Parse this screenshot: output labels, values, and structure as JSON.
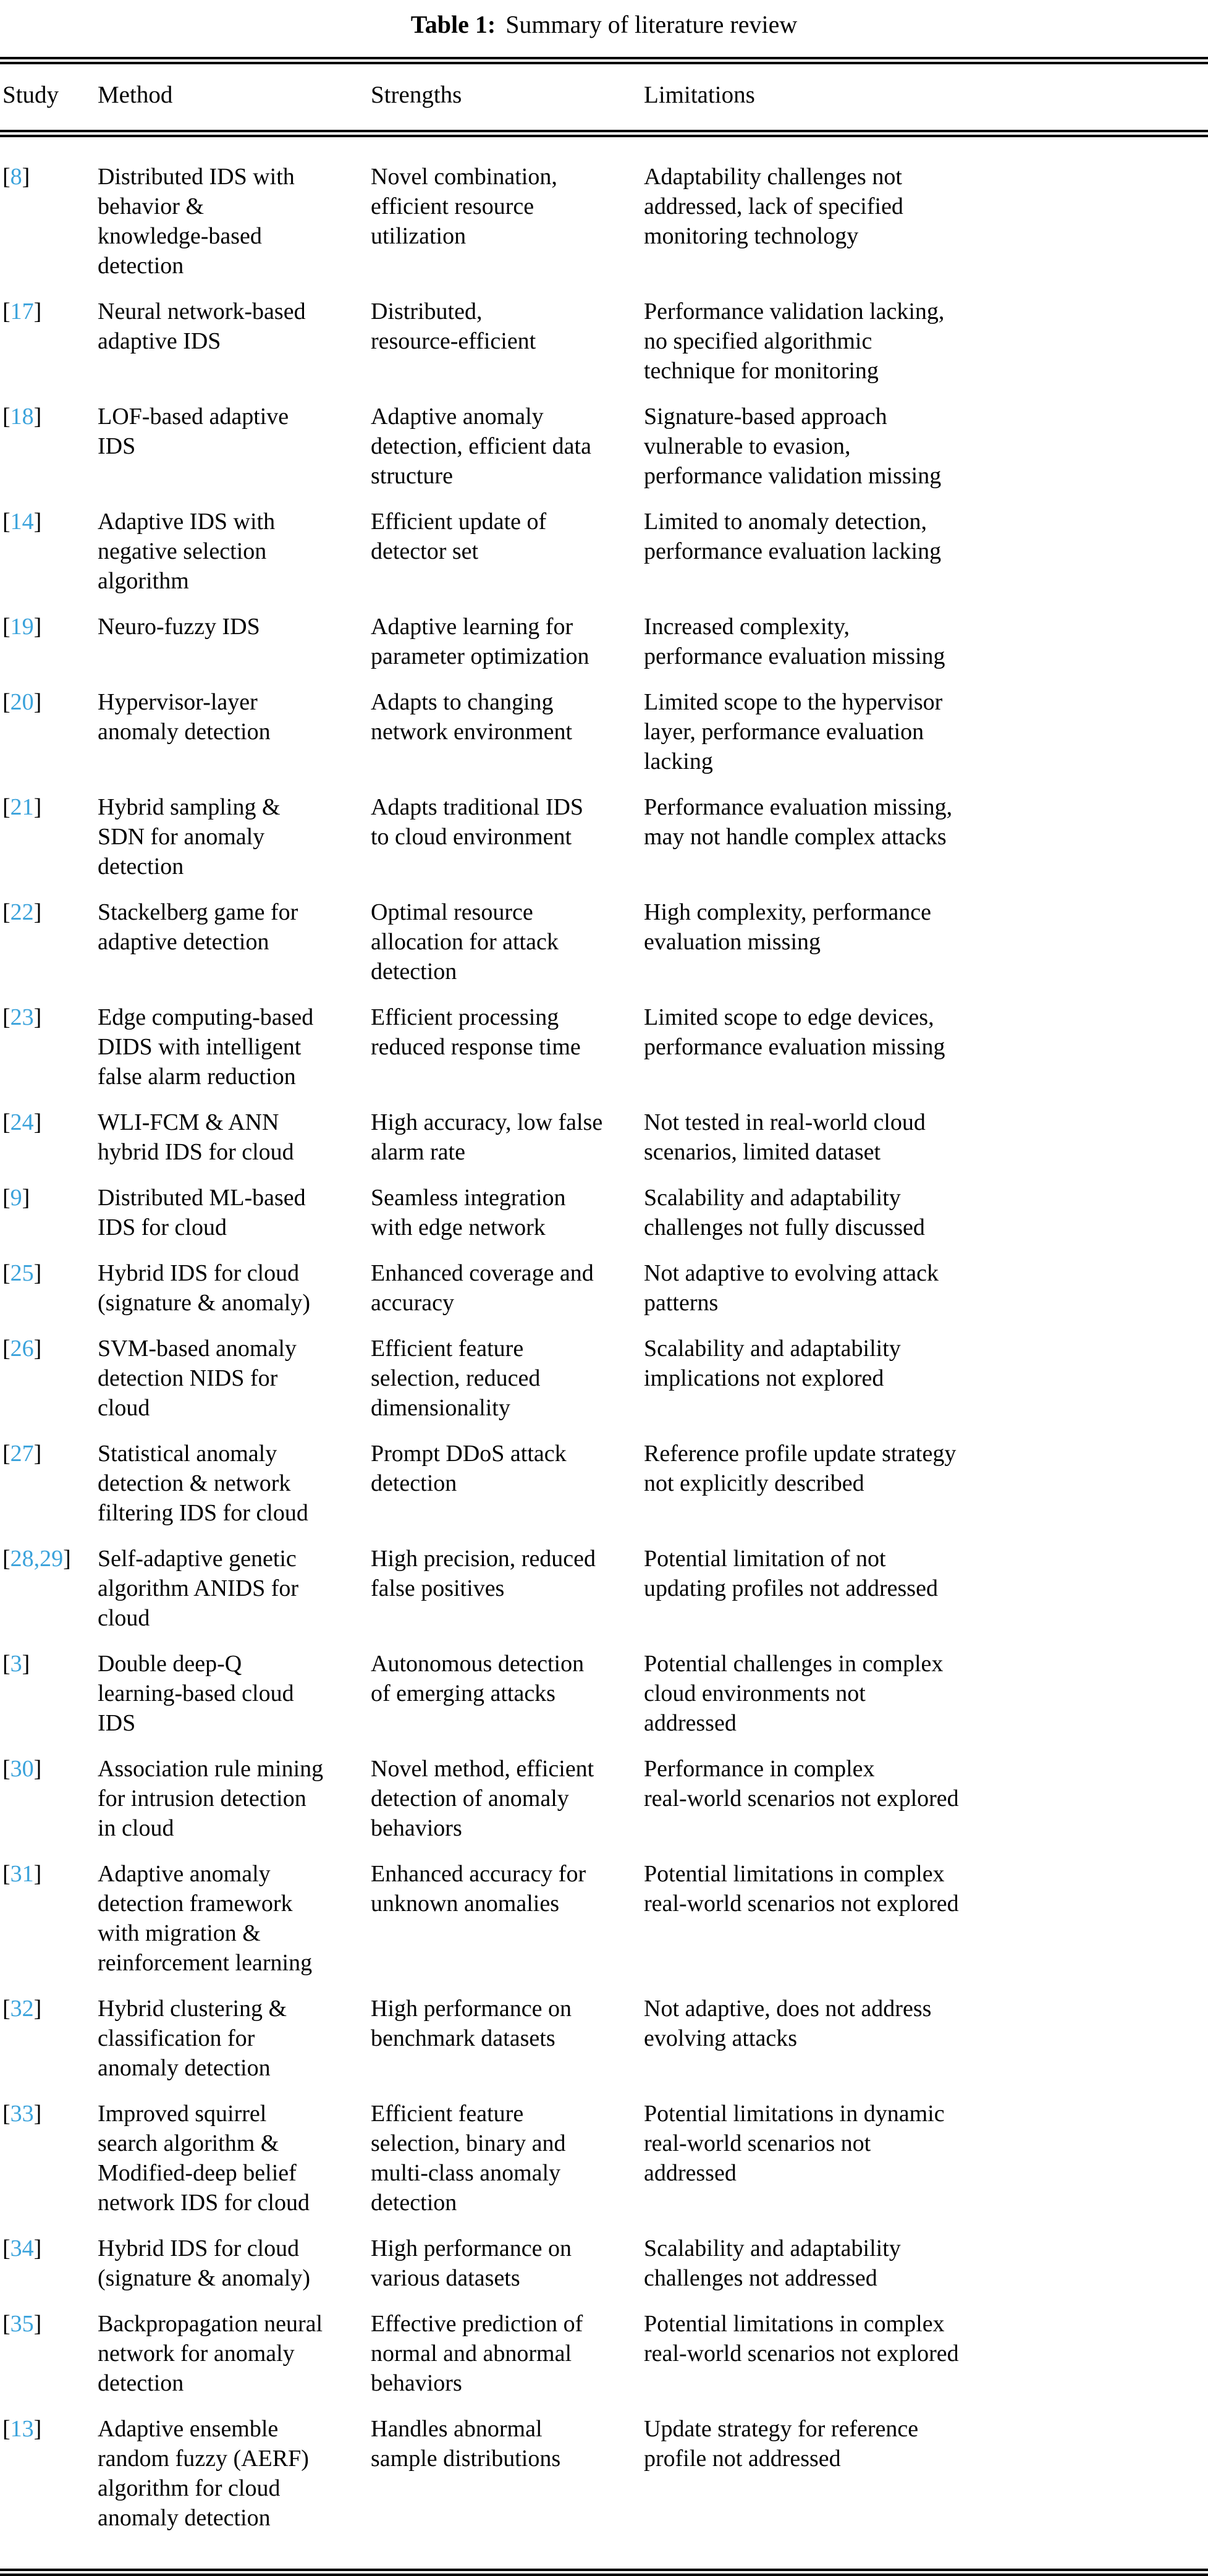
{
  "caption": {
    "label": "Table 1:",
    "text": "Summary of literature review"
  },
  "columns": [
    "Study",
    "Method",
    "Strengths",
    "Limitations"
  ],
  "punct": {
    "open_bracket": "[",
    "close_bracket": "]"
  },
  "colors": {
    "citation_blue": "#3aa2db",
    "rule_black": "#000000"
  },
  "rows": [
    {
      "study": "8",
      "method": [
        "Distributed IDS with",
        "behavior &",
        "knowledge-based",
        "detection"
      ],
      "strengths": [
        "Novel combination,",
        "efficient resource",
        "utilization"
      ],
      "limitations": [
        "Adaptability challenges not",
        "addressed, lack of specified",
        "monitoring technology"
      ]
    },
    {
      "study": "17",
      "method": [
        "Neural network-based",
        "adaptive IDS"
      ],
      "strengths": [
        "Distributed,",
        "resource-efficient"
      ],
      "limitations": [
        "Performance validation lacking,",
        "no specified algorithmic",
        "technique for monitoring"
      ]
    },
    {
      "study": "18",
      "method": [
        "LOF-based adaptive",
        "IDS"
      ],
      "strengths": [
        "Adaptive anomaly",
        "detection, efficient data",
        "structure"
      ],
      "limitations": [
        "Signature-based approach",
        "vulnerable to evasion,",
        "performance validation missing"
      ]
    },
    {
      "study": "14",
      "method": [
        "Adaptive IDS with",
        "negative selection",
        "algorithm"
      ],
      "strengths": [
        "Efficient update of",
        "detector set"
      ],
      "limitations": [
        "Limited to anomaly detection,",
        "performance evaluation lacking"
      ]
    },
    {
      "study": "19",
      "method": [
        "Neuro-fuzzy IDS"
      ],
      "strengths": [
        "Adaptive learning for",
        "parameter optimization"
      ],
      "limitations": [
        "Increased complexity,",
        "performance evaluation missing"
      ]
    },
    {
      "study": "20",
      "method": [
        "Hypervisor-layer",
        "anomaly detection"
      ],
      "strengths": [
        "Adapts to changing",
        "network environment"
      ],
      "limitations": [
        "Limited scope to the hypervisor",
        "layer, performance evaluation",
        "lacking"
      ]
    },
    {
      "study": "21",
      "method": [
        "Hybrid sampling &",
        "SDN for anomaly",
        "detection"
      ],
      "strengths": [
        "Adapts traditional IDS",
        "to cloud environment"
      ],
      "limitations": [
        "Performance evaluation missing,",
        "may not handle complex attacks"
      ]
    },
    {
      "study": "22",
      "method": [
        "Stackelberg game for",
        "adaptive detection"
      ],
      "strengths": [
        "Optimal resource",
        "allocation for attack",
        "detection"
      ],
      "limitations": [
        "High complexity, performance",
        "evaluation missing"
      ]
    },
    {
      "study": "23",
      "method": [
        "Edge computing-based",
        "DIDS with intelligent",
        "false alarm reduction"
      ],
      "strengths": [
        "Efficient processing",
        "reduced response time"
      ],
      "limitations": [
        "Limited scope to edge devices,",
        "performance evaluation missing"
      ]
    },
    {
      "study": "24",
      "method": [
        "WLI-FCM & ANN",
        "hybrid IDS for cloud"
      ],
      "strengths": [
        "High accuracy, low false",
        "alarm rate"
      ],
      "limitations": [
        "Not tested in real-world cloud",
        "scenarios, limited dataset"
      ]
    },
    {
      "study": "9",
      "method": [
        "Distributed ML-based",
        "IDS for cloud"
      ],
      "strengths": [
        "Seamless integration",
        "with edge network"
      ],
      "limitations": [
        "Scalability and adaptability",
        "challenges not fully discussed"
      ]
    },
    {
      "study": "25",
      "method": [
        "Hybrid IDS for cloud",
        "(signature & anomaly)"
      ],
      "strengths": [
        "Enhanced coverage and",
        "accuracy"
      ],
      "limitations": [
        "Not adaptive to evolving attack",
        "patterns"
      ]
    },
    {
      "study": "26",
      "method": [
        "SVM-based anomaly",
        "detection NIDS for",
        "cloud"
      ],
      "strengths": [
        "Efficient feature",
        "selection, reduced",
        "dimensionality"
      ],
      "limitations": [
        "Scalability and adaptability",
        "implications not explored"
      ]
    },
    {
      "study": "27",
      "method": [
        "Statistical anomaly",
        "detection & network",
        "filtering IDS for cloud"
      ],
      "strengths": [
        "Prompt DDoS attack",
        "detection"
      ],
      "limitations": [
        "Reference profile update strategy",
        "not explicitly described"
      ]
    },
    {
      "study": "28,29",
      "method": [
        "Self-adaptive genetic",
        "algorithm ANIDS for",
        "cloud"
      ],
      "strengths": [
        "High precision, reduced",
        "false positives"
      ],
      "limitations": [
        "Potential limitation of not",
        "updating profiles not addressed"
      ]
    },
    {
      "study": "3",
      "method": [
        "Double deep-Q",
        "learning-based cloud",
        "IDS"
      ],
      "strengths": [
        "Autonomous detection",
        "of emerging attacks"
      ],
      "limitations": [
        "Potential challenges in complex",
        "cloud environments not",
        "addressed"
      ]
    },
    {
      "study": "30",
      "method": [
        "Association rule mining",
        "for intrusion detection",
        "in cloud"
      ],
      "strengths": [
        "Novel method, efficient",
        "detection of anomaly",
        "behaviors"
      ],
      "limitations": [
        "Performance in complex",
        "real-world scenarios not explored"
      ]
    },
    {
      "study": "31",
      "method": [
        "Adaptive anomaly",
        "detection framework",
        "with migration &",
        "reinforcement learning"
      ],
      "strengths": [
        "Enhanced accuracy for",
        "unknown anomalies"
      ],
      "limitations": [
        "Potential limitations in complex",
        "real-world scenarios not explored"
      ]
    },
    {
      "study": "32",
      "method": [
        "Hybrid clustering &",
        "classification for",
        "anomaly detection"
      ],
      "strengths": [
        "High performance on",
        "benchmark datasets"
      ],
      "limitations": [
        "Not adaptive, does not address",
        "evolving attacks"
      ]
    },
    {
      "study": "33",
      "method": [
        "Improved squirrel",
        "search algorithm &",
        "Modified-deep belief",
        "network IDS for cloud"
      ],
      "strengths": [
        "Efficient feature",
        "selection, binary and",
        "multi-class anomaly",
        "detection"
      ],
      "limitations": [
        "Potential limitations in dynamic",
        "real-world scenarios not",
        "addressed"
      ]
    },
    {
      "study": "34",
      "method": [
        "Hybrid IDS for cloud",
        "(signature & anomaly)"
      ],
      "strengths": [
        "High performance on",
        "various datasets"
      ],
      "limitations": [
        "Scalability and adaptability",
        "challenges not addressed"
      ]
    },
    {
      "study": "35",
      "method": [
        "Backpropagation neural",
        "network for anomaly",
        "detection"
      ],
      "strengths": [
        "Effective prediction of",
        "normal and abnormal",
        "behaviors"
      ],
      "limitations": [
        "Potential limitations in complex",
        "real-world scenarios not explored"
      ]
    },
    {
      "study": "13",
      "method": [
        "Adaptive ensemble",
        "random fuzzy (AERF)",
        "algorithm for cloud",
        "anomaly detection"
      ],
      "strengths": [
        "Handles abnormal",
        "sample distributions"
      ],
      "limitations": [
        "Update strategy for reference",
        "profile not addressed"
      ]
    }
  ]
}
